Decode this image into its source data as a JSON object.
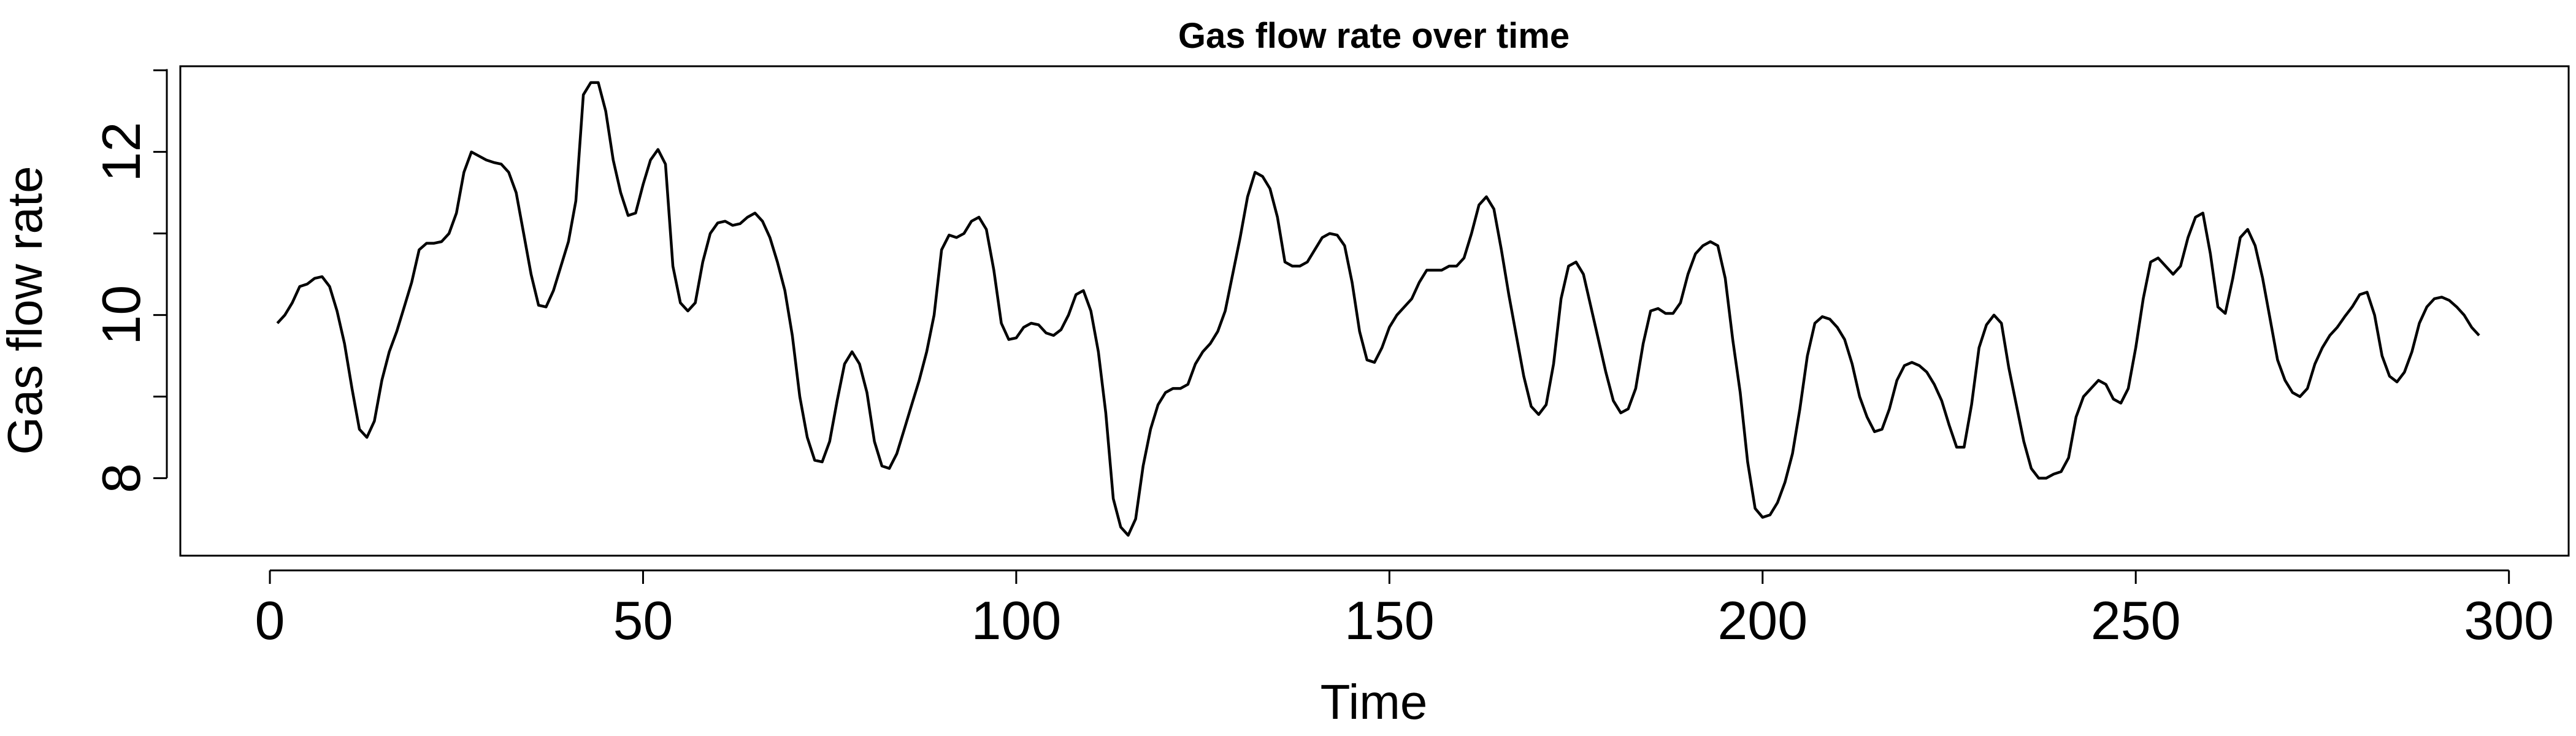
{
  "chart_data": {
    "type": "line",
    "title": "Gas flow rate over time",
    "xlabel": "Time",
    "ylabel": "Gas flow rate",
    "xlim": [
      -12,
      308
    ],
    "ylim": [
      7.05,
      13.05
    ],
    "xticks": [
      0,
      50,
      100,
      150,
      200,
      250,
      300
    ],
    "yticks": [
      8,
      10,
      12
    ],
    "grid": false,
    "legend": "none",
    "line_color": "#000000",
    "x": [
      1,
      2,
      3,
      4,
      5,
      6,
      7,
      8,
      9,
      10,
      11,
      12,
      13,
      14,
      15,
      16,
      17,
      18,
      19,
      20,
      21,
      22,
      23,
      24,
      25,
      26,
      27,
      28,
      29,
      30,
      31,
      32,
      33,
      34,
      35,
      36,
      37,
      38,
      39,
      40,
      41,
      42,
      43,
      44,
      45,
      46,
      47,
      48,
      49,
      50,
      51,
      52,
      53,
      54,
      55,
      56,
      57,
      58,
      59,
      60,
      61,
      62,
      63,
      64,
      65,
      66,
      67,
      68,
      69,
      70,
      71,
      72,
      73,
      74,
      75,
      76,
      77,
      78,
      79,
      80,
      81,
      82,
      83,
      84,
      85,
      86,
      87,
      88,
      89,
      90,
      91,
      92,
      93,
      94,
      95,
      96,
      97,
      98,
      99,
      100,
      101,
      102,
      103,
      104,
      105,
      106,
      107,
      108,
      109,
      110,
      111,
      112,
      113,
      114,
      115,
      116,
      117,
      118,
      119,
      120,
      121,
      122,
      123,
      124,
      125,
      126,
      127,
      128,
      129,
      130,
      131,
      132,
      133,
      134,
      135,
      136,
      137,
      138,
      139,
      140,
      141,
      142,
      143,
      144,
      145,
      146,
      147,
      148,
      149,
      150,
      151,
      152,
      153,
      154,
      155,
      156,
      157,
      158,
      159,
      160,
      161,
      162,
      163,
      164,
      165,
      166,
      167,
      168,
      169,
      170,
      171,
      172,
      173,
      174,
      175,
      176,
      177,
      178,
      179,
      180,
      181,
      182,
      183,
      184,
      185,
      186,
      187,
      188,
      189,
      190,
      191,
      192,
      193,
      194,
      195,
      196,
      197,
      198,
      199,
      200,
      201,
      202,
      203,
      204,
      205,
      206,
      207,
      208,
      209,
      210,
      211,
      212,
      213,
      214,
      215,
      216,
      217,
      218,
      219,
      220,
      221,
      222,
      223,
      224,
      225,
      226,
      227,
      228,
      229,
      230,
      231,
      232,
      233,
      234,
      235,
      236,
      237,
      238,
      239,
      240,
      241,
      242,
      243,
      244,
      245,
      246,
      247,
      248,
      249,
      250,
      251,
      252,
      253,
      254,
      255,
      256,
      257,
      258,
      259,
      260,
      261,
      262,
      263,
      264,
      265,
      266,
      267,
      268,
      269,
      270,
      271,
      272,
      273,
      274,
      275,
      276,
      277,
      278,
      279,
      280,
      281,
      282,
      283,
      284,
      285,
      286,
      287,
      288,
      289,
      290,
      291,
      292,
      293,
      294,
      295,
      296
    ],
    "y": [
      9.9,
      10.0,
      10.15,
      10.35,
      10.38,
      10.45,
      10.47,
      10.35,
      10.05,
      9.65,
      9.1,
      8.6,
      8.5,
      8.7,
      9.2,
      9.55,
      9.8,
      10.1,
      10.4,
      10.8,
      10.88,
      10.88,
      10.9,
      11.0,
      11.25,
      11.75,
      12.0,
      11.95,
      11.9,
      11.87,
      11.85,
      11.75,
      11.5,
      11.0,
      10.5,
      10.12,
      10.1,
      10.3,
      10.6,
      10.9,
      11.4,
      12.7,
      12.85,
      12.85,
      12.5,
      11.9,
      11.5,
      11.22,
      11.25,
      11.6,
      11.9,
      12.03,
      11.85,
      10.6,
      10.15,
      10.05,
      10.15,
      10.65,
      11.0,
      11.13,
      11.15,
      11.1,
      11.12,
      11.2,
      11.25,
      11.15,
      10.95,
      10.65,
      10.3,
      9.75,
      9.0,
      8.5,
      8.22,
      8.2,
      8.45,
      8.95,
      9.4,
      9.55,
      9.4,
      9.05,
      8.45,
      8.15,
      8.12,
      8.3,
      8.6,
      8.9,
      9.2,
      9.55,
      10.0,
      10.8,
      10.98,
      10.95,
      11.0,
      11.15,
      11.2,
      11.05,
      10.55,
      9.9,
      9.7,
      9.72,
      9.85,
      9.9,
      9.88,
      9.78,
      9.75,
      9.82,
      10.0,
      10.25,
      10.3,
      10.05,
      9.55,
      8.8,
      7.75,
      7.4,
      7.3,
      7.5,
      8.15,
      8.6,
      8.9,
      9.05,
      9.1,
      9.1,
      9.15,
      9.4,
      9.55,
      9.65,
      9.8,
      10.05,
      10.5,
      10.95,
      11.45,
      11.75,
      11.7,
      11.55,
      11.2,
      10.65,
      10.6,
      10.6,
      10.65,
      10.8,
      10.95,
      11.0,
      10.98,
      10.85,
      10.4,
      9.8,
      9.45,
      9.42,
      9.6,
      9.85,
      10.0,
      10.1,
      10.2,
      10.4,
      10.55,
      10.55,
      10.55,
      10.6,
      10.6,
      10.7,
      11.0,
      11.35,
      11.45,
      11.3,
      10.8,
      10.25,
      9.75,
      9.25,
      8.88,
      8.78,
      8.9,
      9.4,
      10.2,
      10.6,
      10.65,
      10.5,
      10.1,
      9.7,
      9.3,
      8.95,
      8.8,
      8.85,
      9.1,
      9.65,
      10.05,
      10.08,
      10.02,
      10.02,
      10.15,
      10.5,
      10.75,
      10.85,
      10.9,
      10.85,
      10.45,
      9.7,
      9.05,
      8.2,
      7.63,
      7.52,
      7.55,
      7.7,
      7.95,
      8.3,
      8.85,
      9.5,
      9.9,
      9.98,
      9.95,
      9.85,
      9.7,
      9.4,
      9.0,
      8.75,
      8.57,
      8.6,
      8.85,
      9.2,
      9.38,
      9.42,
      9.38,
      9.3,
      9.15,
      8.95,
      8.65,
      8.38,
      8.38,
      8.9,
      9.6,
      9.88,
      10.0,
      9.9,
      9.35,
      8.9,
      8.45,
      8.12,
      8.0,
      8.0,
      8.05,
      8.08,
      8.25,
      8.75,
      9.0,
      9.1,
      9.2,
      9.15,
      8.97,
      8.92,
      9.1,
      9.6,
      10.2,
      10.65,
      10.7,
      10.6,
      10.5,
      10.6,
      10.95,
      11.2,
      11.25,
      10.75,
      10.1,
      10.02,
      10.45,
      10.95,
      11.05,
      10.85,
      10.45,
      9.95,
      9.45,
      9.2,
      9.05,
      9.0,
      9.1,
      9.4,
      9.6,
      9.75,
      9.85,
      9.98,
      10.1,
      10.25,
      10.28,
      10.0,
      9.5,
      9.25,
      9.18,
      9.3,
      9.55,
      9.9,
      10.1,
      10.2,
      10.22,
      10.18,
      10.1,
      10.0,
      9.85,
      9.75
    ]
  }
}
